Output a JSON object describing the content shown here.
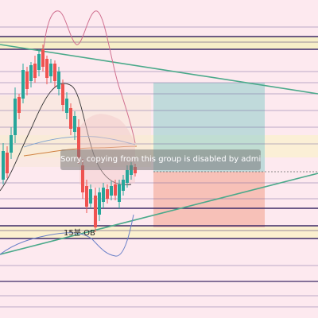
{
  "notice": {
    "text": "Sorry, copying from this group is disabled by admins."
  },
  "annotations": {
    "ob_label": "15분 OB"
  },
  "colors": {
    "background": "#fde9ef",
    "candle_up": "#26a69a",
    "candle_down": "#ef5350",
    "band_fill": "#f7f0c8",
    "level_line": "#2a1a4a",
    "trend_line": "#4aa98a",
    "bollinger": "#d07090",
    "moving_avg": "#333333",
    "ma_alt": "#7aa0d0",
    "ma_orange": "#d08040",
    "long_zone_profit": "#9fd3cf",
    "long_zone_loss": "#f4b3a6"
  }
}
